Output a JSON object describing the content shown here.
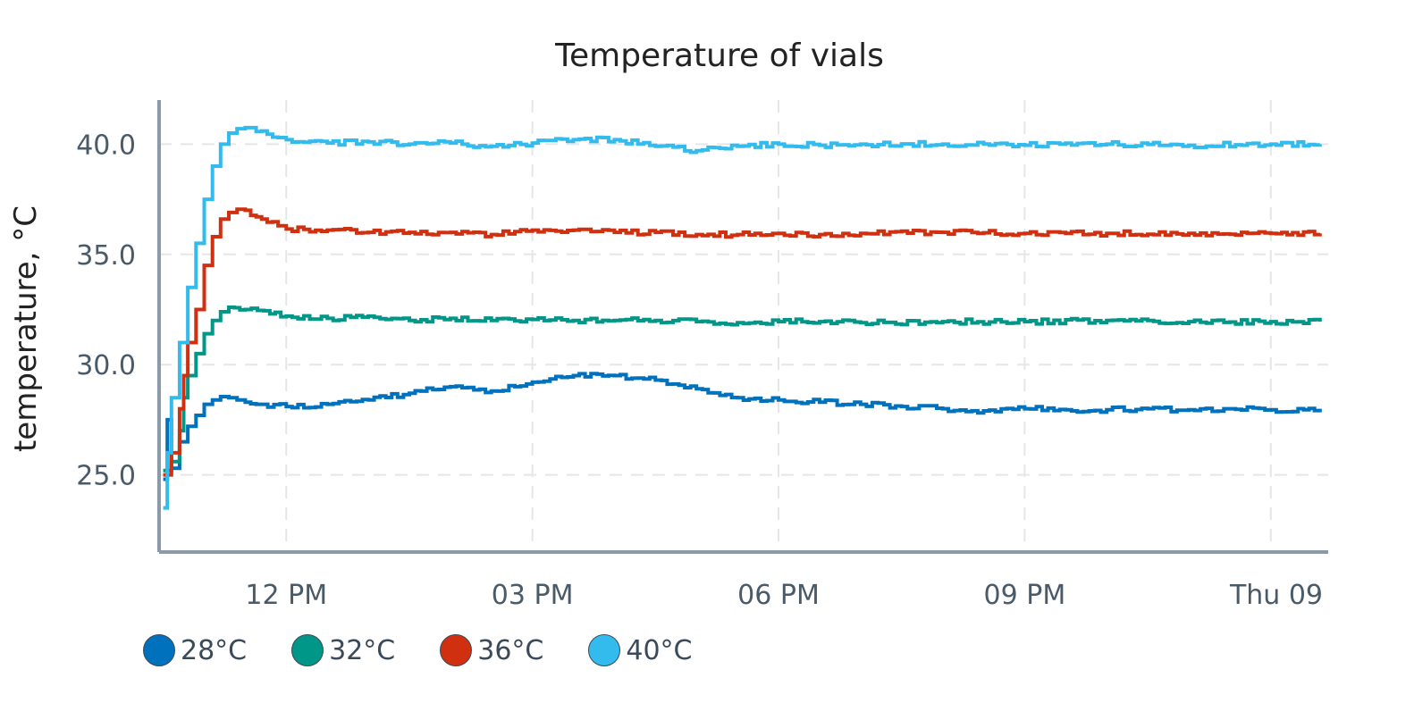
{
  "chart_data": {
    "type": "line",
    "line_shape": "step",
    "title": "Temperature of vials",
    "xlabel": "",
    "ylabel": "temperature, °C",
    "x_tick_labels": [
      "12 PM",
      "03 PM",
      "06 PM",
      "09 PM",
      "Thu 09"
    ],
    "x_ticks_hours": [
      12,
      15,
      18,
      21,
      24
    ],
    "x_range_hours": [
      10.45,
      24.7
    ],
    "y_tick_labels": [
      "25.0",
      "30.0",
      "35.0",
      "40.0"
    ],
    "y_ticks": [
      25,
      30,
      35,
      40
    ],
    "ylim": [
      21.5,
      42.0
    ],
    "grid": true,
    "legend_position": "bottom-left",
    "series": [
      {
        "name": "28°C",
        "color": "#0072bd",
        "points": [
          [
            10.5,
            24.8
          ],
          [
            10.55,
            27.5
          ],
          [
            10.6,
            25.3
          ],
          [
            10.7,
            26.5
          ],
          [
            10.8,
            27.2
          ],
          [
            10.9,
            27.7
          ],
          [
            11.0,
            28.2
          ],
          [
            11.1,
            28.4
          ],
          [
            11.2,
            28.55
          ],
          [
            11.3,
            28.5
          ],
          [
            11.4,
            28.4
          ],
          [
            11.5,
            28.3
          ],
          [
            11.7,
            28.2
          ],
          [
            12.0,
            28.1
          ],
          [
            12.5,
            28.2
          ],
          [
            13.0,
            28.4
          ],
          [
            13.5,
            28.7
          ],
          [
            14.0,
            29.0
          ],
          [
            14.5,
            28.8
          ],
          [
            15.0,
            29.2
          ],
          [
            15.5,
            29.5
          ],
          [
            16.0,
            29.5
          ],
          [
            16.5,
            29.3
          ],
          [
            17.0,
            28.9
          ],
          [
            17.5,
            28.5
          ],
          [
            18.0,
            28.4
          ],
          [
            18.5,
            28.3
          ],
          [
            19.0,
            28.2
          ],
          [
            19.5,
            28.1
          ],
          [
            20.0,
            28.0
          ],
          [
            20.5,
            27.9
          ],
          [
            21.0,
            28.0
          ],
          [
            21.5,
            27.95
          ],
          [
            22.0,
            27.95
          ],
          [
            22.5,
            28.0
          ],
          [
            23.0,
            27.95
          ],
          [
            23.5,
            28.0
          ],
          [
            24.0,
            27.95
          ],
          [
            24.6,
            28.0
          ]
        ]
      },
      {
        "name": "32°C",
        "color": "#009688",
        "points": [
          [
            10.5,
            25.2
          ],
          [
            10.6,
            25.6
          ],
          [
            10.7,
            27.0
          ],
          [
            10.75,
            28.5
          ],
          [
            10.8,
            29.5
          ],
          [
            10.9,
            30.5
          ],
          [
            11.0,
            31.4
          ],
          [
            11.1,
            32.0
          ],
          [
            11.2,
            32.4
          ],
          [
            11.3,
            32.6
          ],
          [
            11.5,
            32.5
          ],
          [
            11.8,
            32.3
          ],
          [
            12.0,
            32.2
          ],
          [
            12.5,
            32.1
          ],
          [
            13.0,
            32.2
          ],
          [
            13.5,
            32.0
          ],
          [
            14.0,
            32.1
          ],
          [
            14.5,
            32.0
          ],
          [
            15.0,
            32.05
          ],
          [
            15.5,
            32.0
          ],
          [
            16.0,
            32.0
          ],
          [
            16.5,
            32.0
          ],
          [
            17.0,
            31.95
          ],
          [
            17.5,
            31.9
          ],
          [
            18.0,
            31.95
          ],
          [
            18.5,
            31.95
          ],
          [
            19.0,
            31.9
          ],
          [
            20.0,
            31.95
          ],
          [
            21.0,
            31.95
          ],
          [
            22.0,
            32.0
          ],
          [
            23.0,
            31.95
          ],
          [
            24.0,
            31.95
          ],
          [
            24.6,
            31.95
          ]
        ]
      },
      {
        "name": "36°C",
        "color": "#d03010",
        "points": [
          [
            10.5,
            25.0
          ],
          [
            10.6,
            26.0
          ],
          [
            10.7,
            28.0
          ],
          [
            10.75,
            29.5
          ],
          [
            10.8,
            31.0
          ],
          [
            10.9,
            32.5
          ],
          [
            11.0,
            34.5
          ],
          [
            11.1,
            35.8
          ],
          [
            11.2,
            36.6
          ],
          [
            11.3,
            36.9
          ],
          [
            11.4,
            37.05
          ],
          [
            11.5,
            37.0
          ],
          [
            11.7,
            36.6
          ],
          [
            11.9,
            36.3
          ],
          [
            12.0,
            36.15
          ],
          [
            12.5,
            36.1
          ],
          [
            13.0,
            36.0
          ],
          [
            13.5,
            36.0
          ],
          [
            14.0,
            36.0
          ],
          [
            14.5,
            35.9
          ],
          [
            15.0,
            36.1
          ],
          [
            15.5,
            36.1
          ],
          [
            16.0,
            36.0
          ],
          [
            16.5,
            36.0
          ],
          [
            17.0,
            35.9
          ],
          [
            17.5,
            35.9
          ],
          [
            18.0,
            35.95
          ],
          [
            18.5,
            35.9
          ],
          [
            19.0,
            35.95
          ],
          [
            20.0,
            36.0
          ],
          [
            21.0,
            35.95
          ],
          [
            22.0,
            35.95
          ],
          [
            23.0,
            35.95
          ],
          [
            24.0,
            35.95
          ],
          [
            24.6,
            35.95
          ]
        ]
      },
      {
        "name": "40°C",
        "color": "#33bbee",
        "points": [
          [
            10.5,
            23.5
          ],
          [
            10.55,
            26.0
          ],
          [
            10.6,
            28.5
          ],
          [
            10.7,
            31.0
          ],
          [
            10.8,
            33.5
          ],
          [
            10.9,
            35.5
          ],
          [
            11.0,
            37.5
          ],
          [
            11.1,
            39.0
          ],
          [
            11.2,
            40.0
          ],
          [
            11.3,
            40.5
          ],
          [
            11.4,
            40.7
          ],
          [
            11.5,
            40.75
          ],
          [
            11.7,
            40.6
          ],
          [
            11.9,
            40.3
          ],
          [
            12.0,
            40.2
          ],
          [
            12.5,
            40.05
          ],
          [
            13.0,
            40.1
          ],
          [
            13.5,
            40.0
          ],
          [
            14.0,
            40.05
          ],
          [
            14.5,
            39.9
          ],
          [
            15.0,
            40.05
          ],
          [
            15.5,
            40.2
          ],
          [
            16.0,
            40.2
          ],
          [
            16.5,
            39.9
          ],
          [
            17.0,
            39.7
          ],
          [
            17.5,
            39.9
          ],
          [
            18.0,
            40.0
          ],
          [
            18.5,
            39.95
          ],
          [
            19.0,
            40.0
          ],
          [
            20.0,
            40.0
          ],
          [
            21.0,
            39.95
          ],
          [
            22.0,
            40.0
          ],
          [
            23.0,
            39.95
          ],
          [
            24.0,
            40.0
          ],
          [
            24.6,
            40.0
          ]
        ]
      }
    ]
  }
}
